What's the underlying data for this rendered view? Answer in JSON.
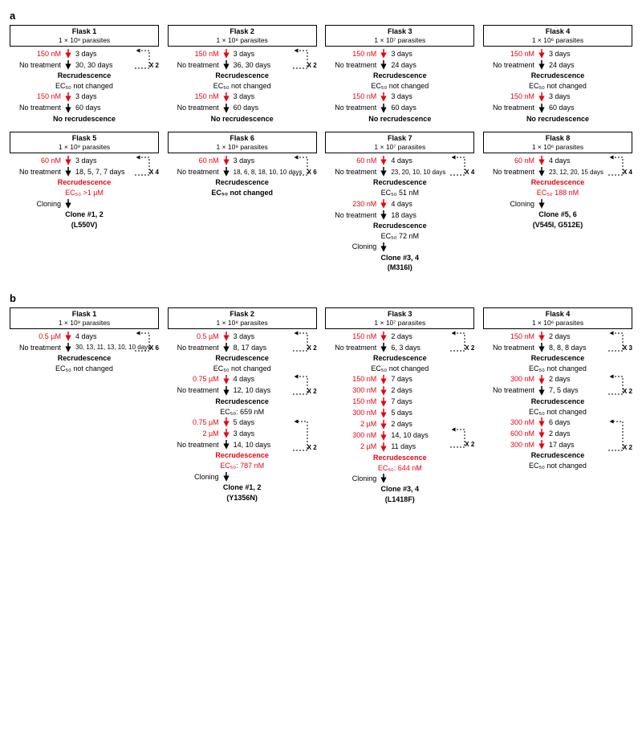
{
  "colors": {
    "red": "#e30613",
    "black": "#000000",
    "bg": "#ffffff"
  },
  "sections": {
    "a": {
      "label": "a",
      "row1": [
        {
          "title": "Flask 1",
          "sub": "1 × 10⁹ parasites",
          "dose": "150 nM",
          "treat_days": "3 days",
          "recdays": "30, 30 days",
          "loop": "X 2",
          "recr": "Recrudescence",
          "ec": "EC₅₀ not changed",
          "dose2": "150 nM",
          "treat2": "3 days",
          "notreat2": "60 days",
          "final": "No recrudescence"
        },
        {
          "title": "Flask 2",
          "sub": "1 × 10⁸ parasites",
          "dose": "150 nM",
          "treat_days": "3 days",
          "recdays": "36, 30 days",
          "loop": "X 2",
          "recr": "Recrudescence",
          "ec": "EC₅₀ not changed",
          "dose2": "150 nM",
          "treat2": "3 days",
          "notreat2": "60 days",
          "final": "No recrudescence"
        },
        {
          "title": "Flask 3",
          "sub": "1 × 10⁷ parasites",
          "dose": "150 nM",
          "treat_days": "3 days",
          "recdays": "24 days",
          "loop": "",
          "recr": "Recrudescence",
          "ec": "EC₅₀ not changed",
          "dose2": "150 nM",
          "treat2": "3 days",
          "notreat2": "60 days",
          "final": "No recrudescence"
        },
        {
          "title": "Flask 4",
          "sub": "1 × 10⁶ parasites",
          "dose": "150 nM",
          "treat_days": "3 days",
          "recdays": "24 days",
          "loop": "",
          "recr": "Recrudescence",
          "ec": "EC₅₀ not changed",
          "dose2": "150 nM",
          "treat2": "3 days",
          "notreat2": "60 days",
          "final": "No recrudescence"
        }
      ],
      "row2": [
        {
          "title": "Flask 5",
          "sub": "1 × 10⁹ parasites",
          "dose": "60 nM",
          "treat_days": "3 days",
          "recdays": "18, 5, 7, 7 days",
          "loop": "X 4",
          "recr": "Recrudescence",
          "ec": "EC₅₀ >1 µM",
          "cloning": "Cloning",
          "clone": "Clone #1, 2",
          "mut": "(L550V)"
        },
        {
          "title": "Flask 6",
          "sub": "1 × 10⁸ parasites",
          "dose": "60 nM",
          "treat_days": "3 days",
          "recdays": "18, 6, 8, 18, 10, 10 days",
          "loop": "X 6",
          "recr": "Recrudescence",
          "ec": "EC₅₀ not changed"
        },
        {
          "title": "Flask 7",
          "sub": "1 × 10⁷ parasites",
          "dose": "60 nM",
          "treat_days": "4 days",
          "recdays": "23, 20, 10, 10 days",
          "loop": "X 4",
          "recr": "Recrudescence",
          "ec": "EC₅₀ 51 nM",
          "dose2": "230 nM",
          "treat2": "4 days",
          "notreat2": "18 days",
          "recr2": "Recrudescence",
          "ec2": "EC₅₀ 72 nM",
          "cloning": "Cloning",
          "clone": "Clone #3, 4",
          "mut": "(M316I)"
        },
        {
          "title": "Flask 8",
          "sub": "1 × 10⁶ parasites",
          "dose": "60 nM",
          "treat_days": "4 days",
          "recdays": "23, 12, 20, 15 days",
          "loop": "X 4",
          "recr": "Recrudescence",
          "ec": "EC₅₀ 188 nM",
          "cloning": "Cloning",
          "clone": "Clone #5, 6",
          "mut": "(V545I, G512E)"
        }
      ]
    },
    "b": {
      "label": "b",
      "flasks": [
        {
          "title": "Flask 1",
          "sub": "1 × 10⁹ parasites",
          "dose": "0.5 µM",
          "treat_days": "4 days",
          "recdays": "30, 13, 11, 13, 10, 10 days",
          "loop": "X 6",
          "recr": "Recrudescence",
          "ec": "EC₅₀ not changed"
        },
        {
          "title": "Flask 2",
          "sub": "1 × 10⁸ parasites",
          "dose": "0.5 µM",
          "treat_days": "3 days",
          "recdays": "8, 17 days",
          "loop": "X 2",
          "recr": "Recrudescence",
          "ec": "EC₅₀ not changed",
          "dose2": "0.75 µM",
          "treat2": "4 days",
          "notreat2": "12, 10 days",
          "loop2": "X 2",
          "recr2": "Recrudescence",
          "ec2": "EC₅₀: 659 nM",
          "s3a": "0.75 µM",
          "s3at": "5 days",
          "s3b": "2 µM",
          "s3bt": "3 days",
          "notreat3": "14, 10 days",
          "loop3": "X 2",
          "recr3": "Recrudescence",
          "ec3": "EC₅₀: 787 nM",
          "cloning": "Cloning",
          "clone": "Clone #1, 2",
          "mut": "(Y1356N)"
        },
        {
          "title": "Flask 3",
          "sub": "1 × 10⁷ parasites",
          "dose": "150 nM",
          "treat_days": "2 days",
          "recdays": "6, 3 days",
          "loop": "X 2",
          "recr": "Recrudescence",
          "ec": "EC₅₀ not changed",
          "seq": [
            {
              "d": "150 nM",
              "t": "7 days"
            },
            {
              "d": "300 nM",
              "t": "2 days"
            },
            {
              "d": "150 nM",
              "t": "7 days"
            },
            {
              "d": "300 nM",
              "t": "5 days"
            },
            {
              "d": "2 µM",
              "t": "2 days"
            },
            {
              "d": "300 nM",
              "t": "14, 10 days"
            },
            {
              "d": "2 µM",
              "t": "11 days"
            }
          ],
          "loop2": "X 2",
          "recr3": "Recrudescence",
          "ec3": "EC₅₀: 644 nM",
          "cloning": "Cloning",
          "clone": "Clone #3, 4",
          "mut": "(L1418F)"
        },
        {
          "title": "Flask 4",
          "sub": "1 × 10⁶ parasites",
          "dose": "150 nM",
          "treat_days": "2 days",
          "recdays": "8, 8, 8 days",
          "loop": "X 3",
          "recr": "Recrudescence",
          "ec": "EC₅₀ not changed",
          "dose2": "300 nM",
          "treat2": "2 days",
          "notreat2": "7, 5 days",
          "loop2": "X 2",
          "recr2": "Recrudescence",
          "ec2": "EC₅₀ not changed",
          "seq": [
            {
              "d": "300 nM",
              "t": "6 days"
            },
            {
              "d": "600 nM",
              "t": "2 days"
            },
            {
              "d": "300 nM",
              "t": "17 days"
            }
          ],
          "loop3": "X 2",
          "recr3": "Recrudescence",
          "ec3": "EC₅₀ not changed"
        }
      ]
    }
  },
  "labels": {
    "no_treatment": "No treatment",
    "cloning": "Cloning"
  }
}
